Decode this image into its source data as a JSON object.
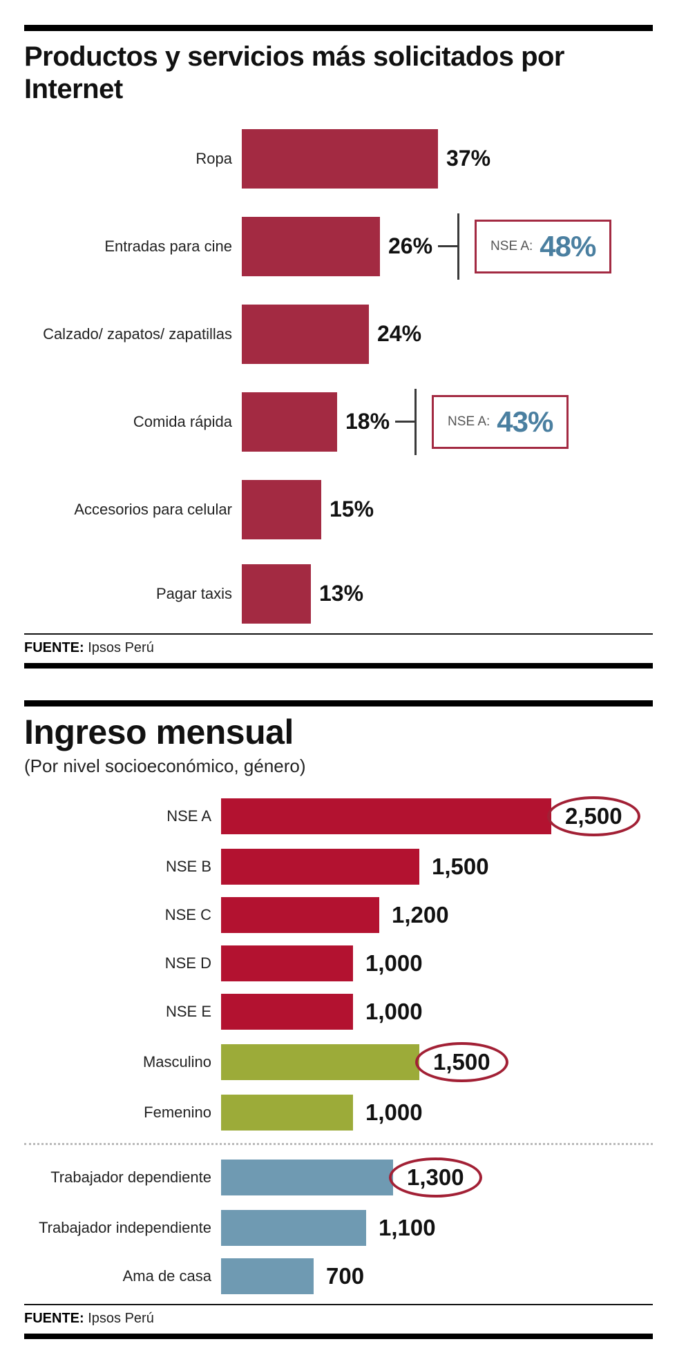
{
  "colors": {
    "crimson": "#a32a42",
    "red": "#b31230",
    "olive": "#9cab39",
    "steel": "#6f9ab2",
    "circle_stroke": "#a22035",
    "annotation_value": "#4a7fa0",
    "connector": "#3a3a3a",
    "rule": "#000000",
    "text": "#1a1a1a",
    "muted": "#555555"
  },
  "chart_data": [
    {
      "type": "bar",
      "orientation": "horizontal",
      "title": "Productos y servicios más solicitados por Internet",
      "categories": [
        "Ropa",
        "Entradas para cine",
        "Calzado/ zapatos/ zapatillas",
        "Comida rápida",
        "Accesorios para celular",
        "Pagar taxis"
      ],
      "values": [
        37,
        26,
        24,
        18,
        15,
        13
      ],
      "value_labels": [
        "37%",
        "26%",
        "24%",
        "18%",
        "15%",
        "13%"
      ],
      "unit": "%",
      "xlim": [
        0,
        40
      ],
      "grid": false,
      "legend": "none",
      "bar_color": "#a32a42",
      "annotations": [
        {
          "row": 1,
          "label": "NSE A:",
          "value": "48%"
        },
        {
          "row": 3,
          "label": "NSE A:",
          "value": "43%"
        }
      ],
      "source_label": "FUENTE:",
      "source": "Ipsos Perú"
    },
    {
      "type": "bar",
      "orientation": "horizontal",
      "title": "Ingreso mensual",
      "subtitle": "(Por nivel socioeconómico, género)",
      "categories": [
        "NSE A",
        "NSE B",
        "NSE C",
        "NSE D",
        "NSE E",
        "Masculino",
        "Femenino",
        "Trabajador dependiente",
        "Trabajador independiente",
        "Ama de casa"
      ],
      "values": [
        2500,
        1500,
        1200,
        1000,
        1000,
        1500,
        1000,
        1300,
        1100,
        700
      ],
      "value_labels": [
        "2,500",
        "1,500",
        "1,200",
        "1,000",
        "1,000",
        "1,500",
        "1,000",
        "1,300",
        "1,100",
        "700"
      ],
      "xlim": [
        0,
        2600
      ],
      "grid": false,
      "legend": "none",
      "bar_colors": [
        "#b31230",
        "#b31230",
        "#b31230",
        "#b31230",
        "#b31230",
        "#9cab39",
        "#9cab39",
        "#6f9ab2",
        "#6f9ab2",
        "#6f9ab2"
      ],
      "circled_rows": [
        0,
        5,
        7
      ],
      "divider_before_row": 7,
      "source_label": "FUENTE:",
      "source": "Ipsos Perú"
    }
  ]
}
